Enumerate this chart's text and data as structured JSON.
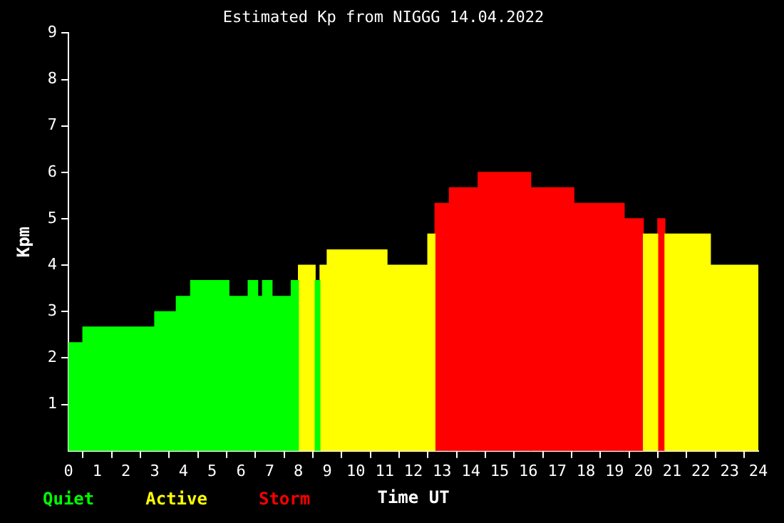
{
  "chart_data": {
    "type": "histogram",
    "title": "Estimated Kp from NIGGG 14.04.2022",
    "xlabel": "Time UT",
    "ylabel": "Kpm",
    "xlim": [
      0,
      24
    ],
    "xticks": [
      0,
      1,
      2,
      3,
      4,
      5,
      6,
      7,
      8,
      9,
      10,
      11,
      12,
      13,
      14,
      15,
      16,
      17,
      18,
      19,
      20,
      21,
      22,
      23,
      24
    ],
    "ylim": [
      0,
      9
    ],
    "yticks": [
      1,
      2,
      3,
      4,
      5,
      6,
      7,
      8,
      9
    ],
    "grid": false,
    "legend": "bottom left",
    "bins": [
      0,
      0.5,
      3,
      3.75,
      4.25,
      5.583,
      6.25,
      6.583,
      6.75,
      7.083,
      7.75,
      8,
      8.583,
      8.75,
      9,
      11.083,
      12.5,
      12.75,
      13.25,
      14.25,
      16.083,
      17.583,
      19.333,
      20,
      20.5,
      20.75,
      22.333,
      24
    ],
    "series": [
      {
        "name": "Quiet",
        "color": "#00ff00",
        "values": [
          2.33,
          2.67,
          3,
          3.33,
          3.67,
          3.33,
          3.67,
          3.33,
          3.67,
          3.33,
          3.67,
          null,
          3.67,
          null,
          null,
          null,
          null,
          null,
          null,
          null,
          null,
          null,
          null,
          null,
          null,
          null,
          null
        ]
      },
      {
        "name": "Active",
        "color": "#ffff00",
        "values": [
          null,
          null,
          null,
          null,
          null,
          null,
          null,
          null,
          null,
          null,
          null,
          4,
          null,
          4,
          4.33,
          4,
          4.67,
          null,
          null,
          null,
          null,
          null,
          null,
          4.67,
          null,
          4.67,
          4
        ]
      },
      {
        "name": "Storm",
        "color": "#ff0000",
        "values": [
          null,
          null,
          null,
          null,
          null,
          null,
          null,
          null,
          null,
          null,
          null,
          null,
          null,
          null,
          null,
          null,
          null,
          5.33,
          5.67,
          6,
          5.67,
          5.33,
          5,
          null,
          5,
          null,
          null
        ]
      }
    ]
  }
}
